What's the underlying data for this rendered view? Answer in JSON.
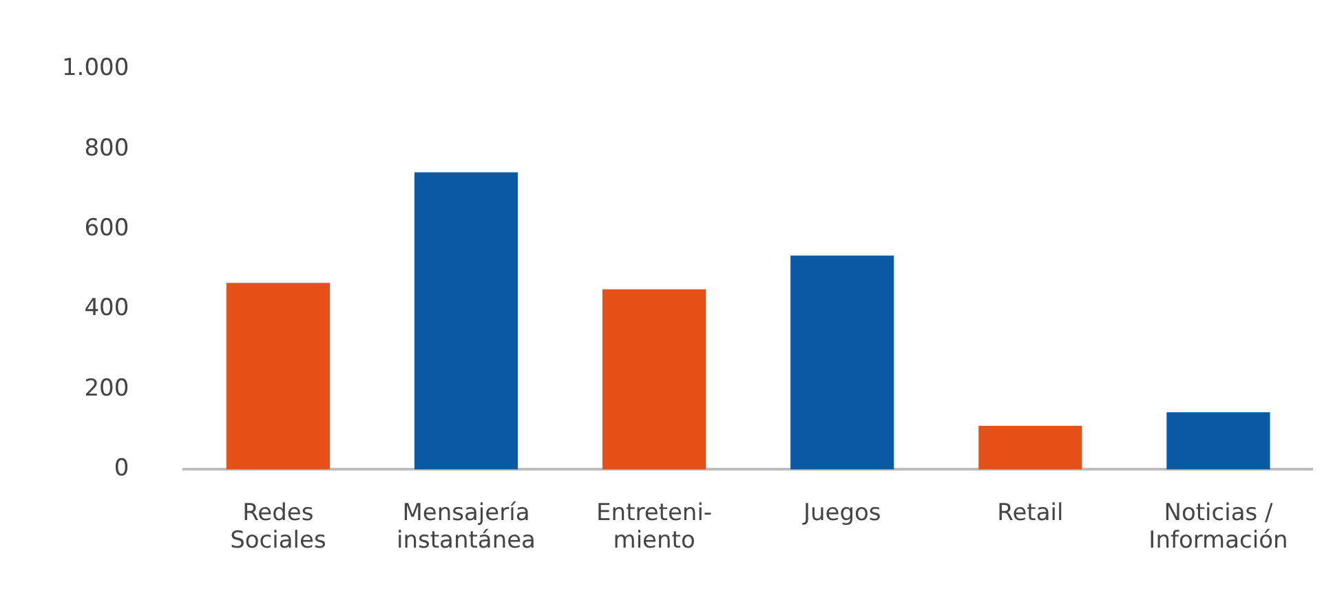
{
  "chart_data": {
    "type": "bar",
    "categories": [
      "Redes\nSociales",
      "Mensajería\ninstantánea",
      "Entreteni-\nmiento",
      "Juegos",
      "Retail",
      "Noticias /\nInformación"
    ],
    "values": [
      466,
      742,
      450,
      534,
      109,
      143
    ],
    "colors": [
      "#e8501a",
      "#0a5aa5",
      "#e8501a",
      "#0a5aa5",
      "#e8501a",
      "#0a5aa5"
    ],
    "ylim": [
      0,
      1000
    ],
    "yticks": [
      0,
      200,
      400,
      600,
      800,
      {
        "value": 1000,
        "label": "1.000"
      }
    ],
    "grid": false,
    "legend": false
  }
}
